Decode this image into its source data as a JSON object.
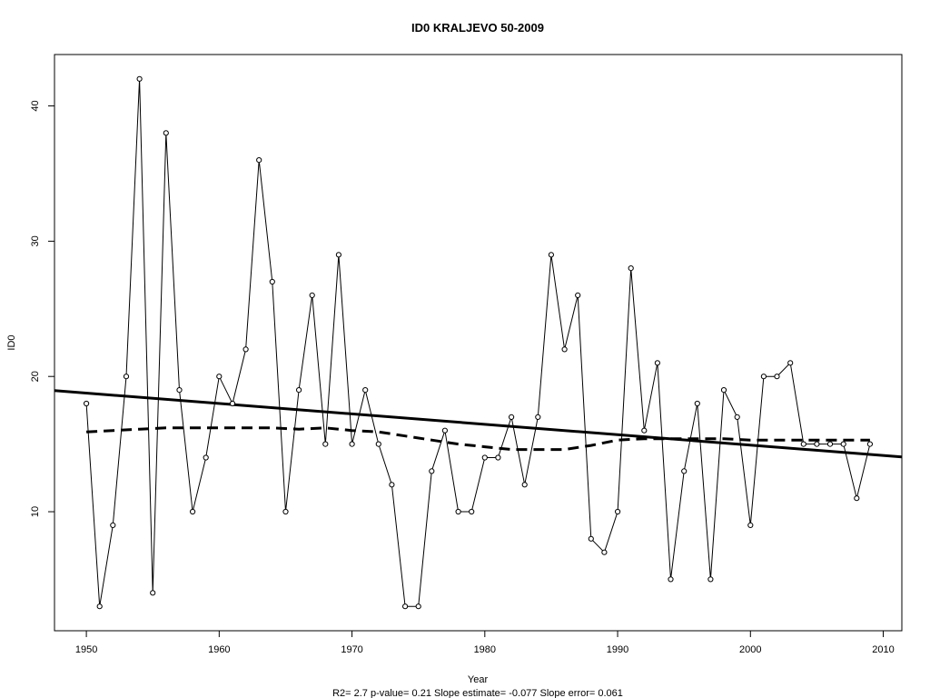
{
  "chart_data": {
    "type": "line",
    "title": "ID0    KRALJEVO 50-2009",
    "xlabel": "Year",
    "ylabel": "ID0",
    "footer": "R2= 2.7  p-value= 0.21  Slope estimate= -0.077  Slope error= 0.061",
    "xlim": [
      1947.6,
      2011.4
    ],
    "ylim": [
      1.2,
      43.8
    ],
    "x_ticks": [
      1950,
      1960,
      1970,
      1980,
      1990,
      2000,
      2010
    ],
    "y_ticks": [
      10,
      20,
      30,
      40
    ],
    "grid": false,
    "legend": "none",
    "series": [
      {
        "style": "thin-line-with-open-circles",
        "x": [
          1950,
          1951,
          1952,
          1953,
          1954,
          1955,
          1956,
          1957,
          1958,
          1959,
          1960,
          1961,
          1962,
          1963,
          1964,
          1965,
          1966,
          1967,
          1968,
          1969,
          1970,
          1971,
          1972,
          1973,
          1974,
          1975,
          1976,
          1977,
          1978,
          1979,
          1980,
          1981,
          1982,
          1983,
          1984,
          1985,
          1986,
          1987,
          1988,
          1989,
          1990,
          1991,
          1992,
          1993,
          1994,
          1995,
          1996,
          1997,
          1998,
          1999,
          2000,
          2001,
          2002,
          2003,
          2004,
          2005,
          2006,
          2007,
          2008,
          2009
        ],
        "y": [
          18,
          3,
          9,
          20,
          42,
          4,
          38,
          19,
          10,
          14,
          20,
          18,
          22,
          36,
          27,
          10,
          19,
          26,
          15,
          29,
          15,
          19,
          15,
          12,
          3,
          3,
          13,
          16,
          10,
          10,
          14,
          14,
          17,
          12,
          17,
          29,
          22,
          26,
          8,
          7,
          10,
          28,
          16,
          21,
          5,
          13,
          18,
          5,
          19,
          17,
          9,
          20,
          20,
          21,
          15,
          15,
          15,
          15,
          11,
          15
        ]
      },
      {
        "style": "thick-solid-trend-line",
        "x": [
          1947.6,
          2011.4
        ],
        "y": [
          18.95,
          14.05
        ]
      },
      {
        "style": "thick-dashed-smooth-line",
        "x": [
          1950,
          1952,
          1954,
          1956,
          1958,
          1960,
          1962,
          1964,
          1966,
          1968,
          1970,
          1972,
          1974,
          1976,
          1978,
          1980,
          1982,
          1984,
          1986,
          1988,
          1990,
          1992,
          1994,
          1996,
          1998,
          2000,
          2002,
          2004,
          2006,
          2009
        ],
        "y": [
          15.9,
          16.0,
          16.1,
          16.2,
          16.2,
          16.2,
          16.2,
          16.2,
          16.1,
          16.2,
          16.0,
          15.9,
          15.6,
          15.3,
          15.0,
          14.8,
          14.6,
          14.6,
          14.6,
          14.9,
          15.3,
          15.4,
          15.4,
          15.4,
          15.4,
          15.3,
          15.3,
          15.3,
          15.3,
          15.3
        ]
      }
    ]
  }
}
